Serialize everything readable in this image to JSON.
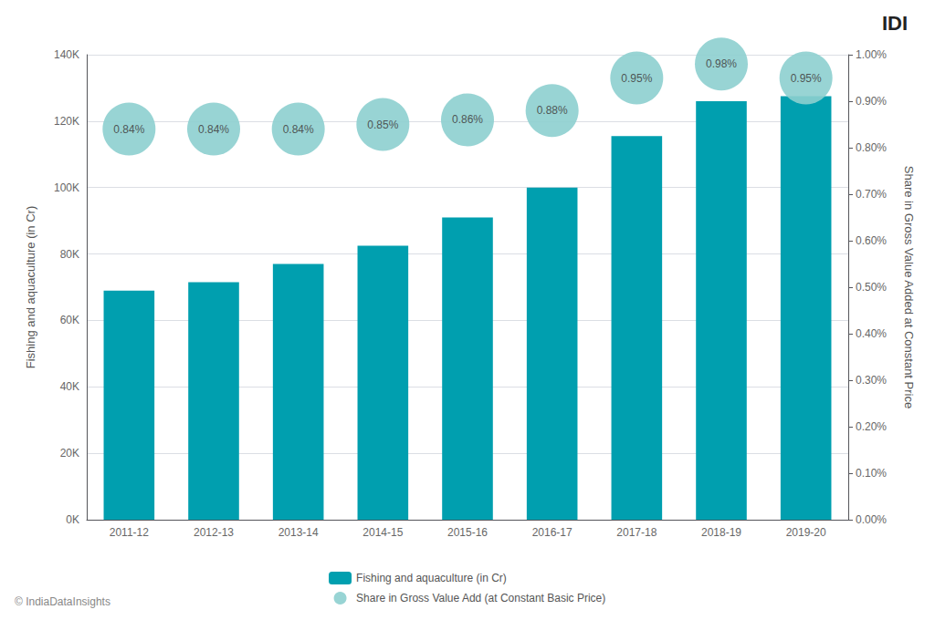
{
  "chart_data": {
    "type": "bar",
    "categories": [
      "2011-12",
      "2012-13",
      "2013-14",
      "2014-15",
      "2015-16",
      "2016-17",
      "2017-18",
      "2018-19",
      "2019-20"
    ],
    "series": [
      {
        "name": "Fishing and aquaculture (in Cr)",
        "type": "bar",
        "color": "#009faf",
        "values": [
          69000,
          71500,
          77000,
          82500,
          91000,
          100000,
          115500,
          126000,
          127500
        ]
      },
      {
        "name": "Share in Gross Value Add (at Constant Basic Price)",
        "type": "scatter",
        "axis": "y2",
        "color": "#8dcfcf",
        "marker": "circle",
        "data_labels": true,
        "values": [
          0.84,
          0.84,
          0.84,
          0.85,
          0.86,
          0.88,
          0.95,
          0.98,
          0.95
        ],
        "value_labels": [
          "0.84%",
          "0.84%",
          "0.84%",
          "0.85%",
          "0.86%",
          "0.88%",
          "0.95%",
          "0.98%",
          "0.95%"
        ]
      }
    ],
    "ylabel": "Fishing and aquaculture (in Cr)",
    "y2label": "Share in Gross Value Added at Constant Price",
    "ylim": [
      0,
      140000
    ],
    "yticks": [
      {
        "value": 0,
        "label": "0K"
      },
      {
        "value": 20000,
        "label": "20K"
      },
      {
        "value": 40000,
        "label": "40K"
      },
      {
        "value": 60000,
        "label": "60K"
      },
      {
        "value": 80000,
        "label": "80K"
      },
      {
        "value": 100000,
        "label": "100K"
      },
      {
        "value": 120000,
        "label": "120K"
      },
      {
        "value": 140000,
        "label": "140K"
      }
    ],
    "y2lim": [
      0.0,
      1.0
    ],
    "y2ticks": [
      {
        "value": 0.0,
        "label": "0.00%"
      },
      {
        "value": 0.1,
        "label": "0.10%"
      },
      {
        "value": 0.2,
        "label": "0.20%"
      },
      {
        "value": 0.3,
        "label": "0.30%"
      },
      {
        "value": 0.4,
        "label": "0.40%"
      },
      {
        "value": 0.5,
        "label": "0.50%"
      },
      {
        "value": 0.6,
        "label": "0.60%"
      },
      {
        "value": 0.7,
        "label": "0.70%"
      },
      {
        "value": 0.8,
        "label": "0.80%"
      },
      {
        "value": 0.9,
        "label": "0.90%"
      },
      {
        "value": 1.0,
        "label": "1.00%"
      }
    ],
    "grid": true,
    "legend": "bottom",
    "annotations": [
      "© IndiaDataInsights",
      "IDI"
    ]
  }
}
